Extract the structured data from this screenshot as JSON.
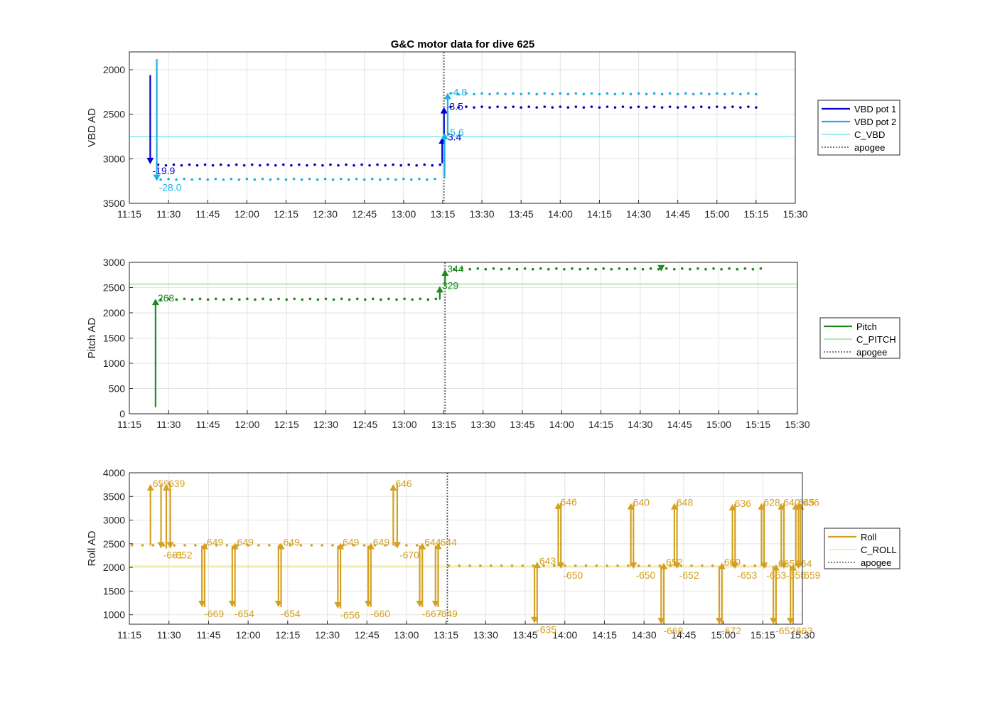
{
  "chart_data": {
    "title": "G&C motor data for dive 625",
    "x_ticks": [
      "11:15",
      "11:30",
      "11:45",
      "12:00",
      "12:15",
      "12:30",
      "12:45",
      "13:00",
      "13:15",
      "13:30",
      "13:45",
      "14:00",
      "14:15",
      "14:30",
      "14:45",
      "15:00",
      "15:15",
      "15:30"
    ],
    "xlim_minutes": [
      675,
      930
    ],
    "apogee_minute": 795.5,
    "colors": {
      "vbd1": "#0000cc",
      "vbd2": "#1ab0e8",
      "c_vbd": "#6ee0e8",
      "pitch": "#1e8a1e",
      "c_pitch": "#7be07b",
      "roll": "#d4a020",
      "c_roll": "#f0e67a",
      "apogee": "#555555"
    },
    "subplots": [
      {
        "id": "vbd",
        "type": "scatter",
        "ylabel": "VBD AD",
        "ylim": [
          1800,
          3500
        ],
        "y_reverse": true,
        "y_ticks": [
          2000,
          2500,
          3000,
          3500
        ],
        "legend": [
          "VBD pot 1",
          "VBD pot 2",
          "C_VBD",
          "apogee"
        ],
        "reference_line": {
          "name": "C_VBD",
          "y": 2750
        },
        "series": [
          {
            "name": "VBD pot 1",
            "color": "#0000cc",
            "segments": [
              {
                "x": [
                  686,
                  794.6
                ],
                "y": 3070
              },
              {
                "x": [
                  798,
                  916
                ],
                "y": 2420
              }
            ],
            "arrows": [
              {
                "x": 683,
                "y_start": 2060,
                "y_end": 3060,
                "label": "-19.9"
              },
              {
                "x": 794.8,
                "y_start": 3050,
                "y_end": 2760,
                "label": "-3.4"
              },
              {
                "x": 795.5,
                "y_start": 2760,
                "y_end": 2420,
                "label": "-3.5"
              }
            ]
          },
          {
            "name": "VBD pot 2",
            "color": "#1ab0e8",
            "segments": [
              {
                "x": [
                  687,
                  794.6
                ],
                "y": 3230
              },
              {
                "x": [
                  798,
                  916
                ],
                "y": 2270
              }
            ],
            "arrows": [
              {
                "x": 685.5,
                "y_start": 1880,
                "y_end": 3250,
                "label": "-28.0"
              },
              {
                "x": 795.7,
                "y_start": 3220,
                "y_end": 2710,
                "label": "-5.6"
              },
              {
                "x": 796.9,
                "y_start": 2740,
                "y_end": 2260,
                "label": "-4.8"
              }
            ]
          }
        ]
      },
      {
        "id": "pitch",
        "type": "scatter",
        "ylabel": "Pitch AD",
        "ylim": [
          0,
          3000
        ],
        "y_reverse": false,
        "y_ticks": [
          0,
          500,
          1000,
          1500,
          2000,
          2500,
          3000
        ],
        "legend": [
          "Pitch",
          "C_PITCH",
          "apogee"
        ],
        "reference_line": {
          "name": "C_PITCH",
          "y": 2570
        },
        "series": [
          {
            "name": "Pitch",
            "color": "#1e8a1e",
            "segments": [
              {
                "x": [
                  687,
                  794.5
                ],
                "y": 2270
              },
              {
                "x": [
                  799,
                  916
                ],
                "y": 2870
              }
            ],
            "arrows": [
              {
                "x": 685,
                "y_start": 130,
                "y_end": 2280,
                "label": "268"
              },
              {
                "x": 793.5,
                "y_start": 2260,
                "y_end": 2530,
                "label": "329"
              },
              {
                "x": 795.5,
                "y_start": 2530,
                "y_end": 2860,
                "label": "344"
              },
              {
                "x": 878,
                "y_start": 2880,
                "y_end": 2820,
                "label": ""
              }
            ]
          }
        ]
      },
      {
        "id": "roll",
        "type": "scatter",
        "ylabel": "Roll AD",
        "ylim": [
          800,
          4000
        ],
        "y_reverse": false,
        "y_ticks": [
          1000,
          1500,
          2000,
          2500,
          3000,
          3500,
          4000
        ],
        "legend": [
          "Roll",
          "C_ROLL",
          "apogee"
        ],
        "reference_line": {
          "name": "C_ROLL",
          "y": 2030
        },
        "series": [
          {
            "name": "Roll",
            "color": "#d4a020",
            "segments": [
              {
                "x": [
                  676,
                  795
                ],
                "y": 2460
              },
              {
                "x": [
                  796,
                  916
                ],
                "y": 2030
              }
            ],
            "arrows": [
              {
                "x": 683,
                "y_start": 2460,
                "y_end": 3760,
                "label": "659"
              },
              {
                "x": 687,
                "y_start": 3760,
                "y_end": 2400,
                "label": "-661"
              },
              {
                "x": 689,
                "y_start": 2400,
                "y_end": 3760,
                "label": "639"
              },
              {
                "x": 690.5,
                "y_start": 3760,
                "y_end": 2400,
                "label": "-652"
              },
              {
                "x": 702.5,
                "y_start": 2460,
                "y_end": 1160,
                "label": "-669"
              },
              {
                "x": 703.5,
                "y_start": 1160,
                "y_end": 2520,
                "label": "649"
              },
              {
                "x": 714,
                "y_start": 2460,
                "y_end": 1160,
                "label": "-654"
              },
              {
                "x": 715,
                "y_start": 1160,
                "y_end": 2520,
                "label": "649"
              },
              {
                "x": 731.5,
                "y_start": 2460,
                "y_end": 1160,
                "label": "-654"
              },
              {
                "x": 732.5,
                "y_start": 1160,
                "y_end": 2520,
                "label": "649"
              },
              {
                "x": 754,
                "y_start": 2460,
                "y_end": 1130,
                "label": "-656"
              },
              {
                "x": 755,
                "y_start": 1130,
                "y_end": 2520,
                "label": "649"
              },
              {
                "x": 765.5,
                "y_start": 2460,
                "y_end": 1160,
                "label": "-660"
              },
              {
                "x": 766.5,
                "y_start": 1160,
                "y_end": 2520,
                "label": "649"
              },
              {
                "x": 775,
                "y_start": 2460,
                "y_end": 3760,
                "label": "646"
              },
              {
                "x": 776.5,
                "y_start": 3760,
                "y_end": 2400,
                "label": "-670"
              },
              {
                "x": 785,
                "y_start": 2460,
                "y_end": 1160,
                "label": "-667"
              },
              {
                "x": 786,
                "y_start": 1160,
                "y_end": 2520,
                "label": "644"
              },
              {
                "x": 791,
                "y_start": 2460,
                "y_end": 1160,
                "label": "-649"
              },
              {
                "x": 792,
                "y_start": 1160,
                "y_end": 2520,
                "label": "644"
              },
              {
                "x": 828.5,
                "y_start": 2030,
                "y_end": 820,
                "label": "-635"
              },
              {
                "x": 829.5,
                "y_start": 820,
                "y_end": 2120,
                "label": "643"
              },
              {
                "x": 837.5,
                "y_start": 2030,
                "y_end": 3370,
                "label": "646"
              },
              {
                "x": 838.5,
                "y_start": 3370,
                "y_end": 1970,
                "label": "-650"
              },
              {
                "x": 865,
                "y_start": 2030,
                "y_end": 3360,
                "label": "640"
              },
              {
                "x": 866,
                "y_start": 3360,
                "y_end": 1970,
                "label": "-650"
              },
              {
                "x": 876.5,
                "y_start": 2030,
                "y_end": 800,
                "label": "-668"
              },
              {
                "x": 877.5,
                "y_start": 800,
                "y_end": 2100,
                "label": "652"
              },
              {
                "x": 881.5,
                "y_start": 2030,
                "y_end": 3360,
                "label": "648"
              },
              {
                "x": 882.5,
                "y_start": 3360,
                "y_end": 1970,
                "label": "-652"
              },
              {
                "x": 898.5,
                "y_start": 2030,
                "y_end": 800,
                "label": "-672"
              },
              {
                "x": 899.5,
                "y_start": 800,
                "y_end": 2100,
                "label": "660"
              },
              {
                "x": 903.5,
                "y_start": 2030,
                "y_end": 3340,
                "label": "636"
              },
              {
                "x": 904.5,
                "y_start": 3340,
                "y_end": 1970,
                "label": "-653"
              },
              {
                "x": 914.5,
                "y_start": 2030,
                "y_end": 3360,
                "label": "628"
              },
              {
                "x": 915.5,
                "y_start": 3360,
                "y_end": 1970,
                "label": "-653"
              },
              {
                "x": 919,
                "y_start": 2030,
                "y_end": 800,
                "label": "-652"
              },
              {
                "x": 920,
                "y_start": 800,
                "y_end": 2070,
                "label": "665"
              },
              {
                "x": 922,
                "y_start": 2030,
                "y_end": 3360,
                "label": "640"
              },
              {
                "x": 923,
                "y_start": 3360,
                "y_end": 1970,
                "label": "-655"
              },
              {
                "x": 925.5,
                "y_start": 2030,
                "y_end": 800,
                "label": "-663"
              },
              {
                "x": 926.5,
                "y_start": 800,
                "y_end": 2070,
                "label": "664"
              },
              {
                "x": 927.5,
                "y_start": 2030,
                "y_end": 3360,
                "label": "645"
              },
              {
                "x": 928.5,
                "y_start": 3360,
                "y_end": 1970,
                "label": "-659"
              },
              {
                "x": 929.3,
                "y_start": 2030,
                "y_end": 3360,
                "label": "636"
              }
            ]
          }
        ]
      }
    ]
  }
}
